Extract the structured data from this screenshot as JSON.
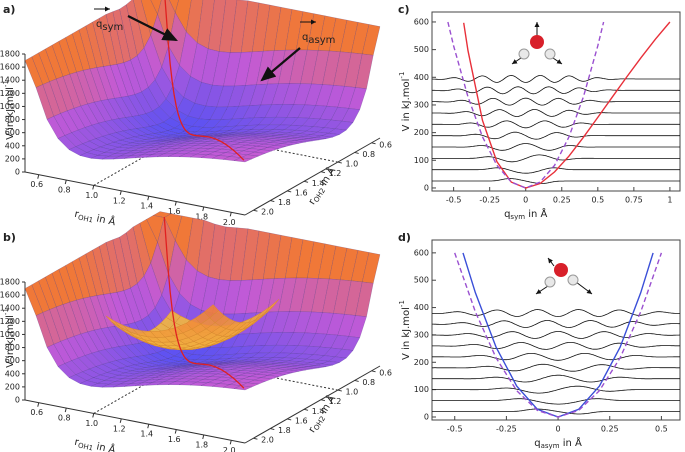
{
  "chart_data": [
    {
      "type": "surface",
      "panel": "a)",
      "zlabel": {
        "main": "V in kJ.mol",
        "sup": "-1"
      },
      "xlabel": {
        "main": "r",
        "sub": "OH1",
        "rest": " in Å"
      },
      "ylabel": {
        "main": "r",
        "sub": "OH2",
        "rest": " in Å"
      },
      "zlim": [
        0,
        1800
      ],
      "zticks": [
        0,
        200,
        400,
        600,
        800,
        1000,
        1200,
        1400,
        1600,
        1800
      ],
      "xlim": [
        0.5,
        2.1
      ],
      "xticks": [
        0.6,
        0.8,
        {
          "value": 1,
          "label": "1.0"
        },
        1.2,
        1.4,
        1.6,
        1.8,
        {
          "value": 2,
          "label": "2.0"
        }
      ],
      "ylim": [
        0.5,
        2.1
      ],
      "yticks": [
        0.6,
        0.8,
        {
          "value": 1,
          "label": "1.0"
        },
        1.2,
        1.4,
        1.6,
        1.8,
        {
          "value": 2,
          "label": "2.0"
        }
      ],
      "colormap": [
        "#5b52f2",
        "#c25ad6",
        "#f07838"
      ],
      "annotations": [
        {
          "text": "q",
          "sub": "sym"
        },
        {
          "text": "q",
          "sub": "asym"
        }
      ]
    },
    {
      "type": "surface",
      "panel": "b)",
      "zlabel": {
        "main": "V in kJ.mol",
        "sup": "-1"
      },
      "xlabel": {
        "main": "r",
        "sub": "OH1",
        "rest": " in Å"
      },
      "ylabel": {
        "main": "r",
        "sub": "OH2",
        "rest": " in Å"
      },
      "zlim": [
        0,
        1800
      ],
      "zticks": [
        0,
        200,
        400,
        600,
        800,
        1000,
        1200,
        1400,
        1600,
        1800
      ],
      "xlim": [
        0.5,
        2.1
      ],
      "xticks": [
        0.6,
        0.8,
        {
          "value": 1,
          "label": "1.0"
        },
        1.2,
        1.4,
        1.6,
        1.8,
        {
          "value": 2,
          "label": "2.0"
        }
      ],
      "ylim": [
        0.5,
        2.1
      ],
      "yticks": [
        0.6,
        0.8,
        {
          "value": 1,
          "label": "1.0"
        },
        1.2,
        1.4,
        1.6,
        1.8,
        {
          "value": 2,
          "label": "2.0"
        }
      ],
      "colormap": [
        "#5b52f2",
        "#c25ad6",
        "#f07838"
      ],
      "overlay_color": "#f2c040"
    },
    {
      "type": "line",
      "panel": "c)",
      "ylabel": {
        "main": "V in kJ.mol",
        "sup": "-1"
      },
      "xlabel": {
        "main": "q",
        "sub": "sym",
        "rest": " in Å"
      },
      "xlim": [
        -0.65,
        1.07
      ],
      "xticks": [
        -0.5,
        -0.25,
        0,
        0.25,
        0.5,
        0.75,
        1
      ],
      "ylim": [
        -11,
        636
      ],
      "yticks": [
        0,
        100,
        200,
        300,
        400,
        500,
        600
      ],
      "series": [
        {
          "color": "#e8303a",
          "dash": false,
          "x": [
            -0.43,
            -0.4,
            -0.3,
            -0.2,
            -0.1,
            0,
            0.1,
            0.2,
            0.3,
            0.4,
            0.5,
            0.6,
            0.7,
            0.8,
            0.9,
            1.0
          ],
          "values": [
            597,
            496,
            244,
            95,
            21,
            0,
            16,
            58,
            115,
            183,
            255,
            328,
            401,
            471,
            538,
            600
          ]
        },
        {
          "color": "#9a50d0",
          "dash": true,
          "x": [
            -0.54,
            -0.5,
            -0.4,
            -0.3,
            -0.2,
            -0.1,
            0,
            0.1,
            0.2,
            0.3,
            0.4,
            0.5,
            0.54
          ],
          "values": [
            600,
            514,
            329,
            185,
            82,
            21,
            0,
            21,
            82,
            185,
            329,
            514,
            600
          ]
        }
      ],
      "levels": {
        "color": "#111111",
        "values": [
          25,
          66,
          107,
          148,
          189,
          230,
          271,
          312,
          353,
          394
        ]
      }
    },
    {
      "type": "line",
      "panel": "d)",
      "ylabel": {
        "main": "V in kJ.mol",
        "sup": "-1"
      },
      "xlabel": {
        "main": "q",
        "sub": "asym",
        "rest": " in Å"
      },
      "xlim": [
        -0.61,
        0.59
      ],
      "xticks": [
        -0.5,
        -0.25,
        0,
        0.25,
        0.5
      ],
      "ylim": [
        -11,
        647
      ],
      "yticks": [
        0,
        100,
        200,
        300,
        400,
        500,
        600
      ],
      "series": [
        {
          "color": "#3a4fd8",
          "dash": false,
          "x": [
            -0.46,
            -0.4,
            -0.3,
            -0.2,
            -0.1,
            0,
            0.1,
            0.2,
            0.3,
            0.4,
            0.46
          ],
          "values": [
            600,
            454,
            255,
            113,
            28,
            0,
            28,
            113,
            255,
            454,
            600
          ]
        },
        {
          "color": "#9a50d0",
          "dash": true,
          "x": [
            -0.5,
            -0.4,
            -0.3,
            -0.2,
            -0.1,
            0,
            0.1,
            0.2,
            0.3,
            0.4,
            0.5
          ],
          "values": [
            600,
            384,
            216,
            96,
            24,
            0,
            24,
            96,
            216,
            384,
            600
          ]
        }
      ],
      "levels": {
        "color": "#111111",
        "values": [
          20,
          60,
          100,
          140,
          180,
          220,
          260,
          300,
          340,
          380
        ]
      }
    }
  ]
}
